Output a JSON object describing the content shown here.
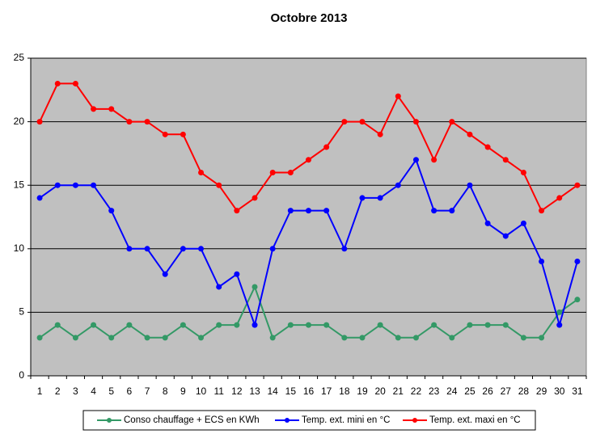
{
  "chart_data": {
    "type": "line",
    "title": "Octobre 2013",
    "categories": [
      "1",
      "2",
      "3",
      "4",
      "5",
      "6",
      "7",
      "8",
      "9",
      "10",
      "11",
      "12",
      "13",
      "14",
      "15",
      "16",
      "17",
      "18",
      "19",
      "20",
      "21",
      "22",
      "23",
      "24",
      "25",
      "26",
      "27",
      "28",
      "29",
      "30",
      "31"
    ],
    "series": [
      {
        "name": "Conso chauffage + ECS en KWh",
        "color": "#339966",
        "values": [
          3,
          4,
          3,
          4,
          3,
          4,
          3,
          3,
          4,
          3,
          4,
          4,
          7,
          3,
          4,
          4,
          4,
          3,
          3,
          4,
          3,
          3,
          4,
          3,
          4,
          4,
          4,
          3,
          3,
          5,
          6
        ]
      },
      {
        "name": "Temp. ext. mini en °C",
        "color": "#0000ff",
        "values": [
          14,
          15,
          15,
          15,
          13,
          10,
          10,
          8,
          10,
          10,
          7,
          8,
          4,
          10,
          13,
          13,
          13,
          10,
          14,
          14,
          15,
          17,
          13,
          13,
          15,
          12,
          11,
          12,
          9,
          4,
          9
        ]
      },
      {
        "name": "Temp. ext. maxi en °C",
        "color": "#ff0000",
        "values": [
          20,
          23,
          23,
          21,
          21,
          20,
          20,
          19,
          19,
          16,
          15,
          13,
          14,
          16,
          16,
          17,
          18,
          20,
          20,
          19,
          22,
          20,
          17,
          20,
          19,
          18,
          17,
          16,
          13,
          14,
          15
        ]
      }
    ],
    "ylim": [
      0,
      25
    ],
    "yticks": [
      0,
      5,
      10,
      15,
      20,
      25
    ],
    "grid": true,
    "legend": "bottom",
    "plot_background": "#c0c0c0"
  }
}
